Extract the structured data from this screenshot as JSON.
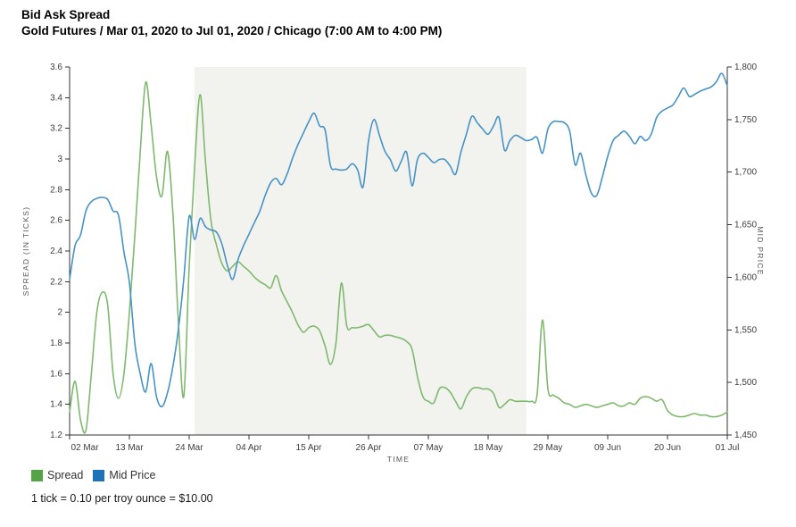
{
  "header": {
    "title": "Bid Ask Spread",
    "subtitle": "Gold Futures / Mar 01, 2020 to Jul 01, 2020 / Chicago (7:00 AM to 4:00 PM)"
  },
  "legend": [
    {
      "label": "Spread",
      "color": "#55a347"
    },
    {
      "label": "Mid Price",
      "color": "#1d72b8"
    }
  ],
  "footer": {
    "note": "1 tick = 0.10 per troy ounce = $10.00"
  },
  "chart_data": {
    "type": "line",
    "title": "Bid Ask Spread",
    "subtitle": "Gold Futures / Mar 01, 2020 to Jul 01, 2020 / Chicago (7:00 AM to 4:00 PM)",
    "xlabel": "TIME",
    "x_domain_days": [
      0,
      121
    ],
    "x_tick_days": [
      0,
      11,
      22,
      33,
      44,
      55,
      66,
      77,
      88,
      99,
      110,
      121
    ],
    "x_tick_labels": [
      "02 Mar",
      "13 Mar",
      "24 Mar",
      "04 Apr",
      "15 Apr",
      "26 Apr",
      "07 May",
      "18 May",
      "29 May",
      "09 Jun",
      "20 Jun",
      "01 Jul"
    ],
    "left_axis": {
      "label": "SPREAD (IN TICKS)",
      "min": 1.2,
      "max": 3.6,
      "tick_values": [
        3.6,
        3.4,
        3.2,
        3.0,
        2.8,
        2.6,
        2.4,
        2.2,
        2.0,
        1.8,
        1.6,
        1.4,
        1.2
      ],
      "tick_labels": [
        "3.6",
        "3.4",
        "3.2",
        "3",
        "2.8",
        "2.6",
        "2.4",
        "2.2",
        "2",
        "1.8",
        "1.6",
        "1.4",
        "1.2"
      ]
    },
    "right_axis": {
      "label": "MID PRICE",
      "min": 1450,
      "max": 1800,
      "tick_values": [
        1800,
        1750,
        1700,
        1650,
        1600,
        1550,
        1500,
        1450
      ],
      "tick_labels": [
        "1,800",
        "1,750",
        "1,700",
        "1,650",
        "1,600",
        "1,550",
        "1,500",
        "1,450"
      ]
    },
    "highlight_region": {
      "from_day": 23,
      "to_day": 84,
      "from_date": "25 Mar 2020",
      "to_date": "25 May 2020",
      "color": "#f2f2ef"
    },
    "grid": false,
    "legend_position": "bottom-left",
    "colors": {
      "spread_line": "#7fb96e",
      "mid_price_line": "#4793c6",
      "axis": "#333333"
    },
    "series": [
      {
        "name": "Spread",
        "axis": "left",
        "color": "#7fb96e",
        "points": [
          [
            0,
            1.35
          ],
          [
            1,
            1.55
          ],
          [
            2,
            1.3
          ],
          [
            3,
            1.23
          ],
          [
            4,
            1.6
          ],
          [
            5,
            2.0
          ],
          [
            6,
            2.13
          ],
          [
            7,
            2.05
          ],
          [
            8,
            1.6
          ],
          [
            9,
            1.44
          ],
          [
            10,
            1.6
          ],
          [
            11,
            2.0
          ],
          [
            12,
            2.5
          ],
          [
            13,
            3.05
          ],
          [
            14,
            3.5
          ],
          [
            15,
            3.22
          ],
          [
            16,
            2.88
          ],
          [
            17,
            2.76
          ],
          [
            18,
            3.05
          ],
          [
            19,
            2.65
          ],
          [
            20,
            1.95
          ],
          [
            21,
            1.45
          ],
          [
            22,
            2.3
          ],
          [
            23,
            2.95
          ],
          [
            24,
            3.42
          ],
          [
            25,
            2.98
          ],
          [
            26,
            2.6
          ],
          [
            27,
            2.44
          ],
          [
            28,
            2.32
          ],
          [
            29,
            2.27
          ],
          [
            30,
            2.3
          ],
          [
            31,
            2.33
          ],
          [
            32,
            2.3
          ],
          [
            33,
            2.27
          ],
          [
            34,
            2.23
          ],
          [
            35,
            2.2
          ],
          [
            36,
            2.18
          ],
          [
            37,
            2.16
          ],
          [
            38,
            2.24
          ],
          [
            39,
            2.14
          ],
          [
            40,
            2.07
          ],
          [
            41,
            2.0
          ],
          [
            42,
            1.92
          ],
          [
            43,
            1.87
          ],
          [
            44,
            1.9
          ],
          [
            45,
            1.91
          ],
          [
            46,
            1.88
          ],
          [
            47,
            1.78
          ],
          [
            48,
            1.66
          ],
          [
            49,
            1.8
          ],
          [
            50,
            2.19
          ],
          [
            51,
            1.91
          ],
          [
            52,
            1.9
          ],
          [
            53,
            1.9
          ],
          [
            54,
            1.91
          ],
          [
            55,
            1.92
          ],
          [
            56,
            1.88
          ],
          [
            57,
            1.84
          ],
          [
            58,
            1.85
          ],
          [
            59,
            1.85
          ],
          [
            60,
            1.84
          ],
          [
            61,
            1.83
          ],
          [
            62,
            1.81
          ],
          [
            63,
            1.76
          ],
          [
            64,
            1.58
          ],
          [
            65,
            1.45
          ],
          [
            66,
            1.42
          ],
          [
            67,
            1.41
          ],
          [
            68,
            1.5
          ],
          [
            69,
            1.51
          ],
          [
            70,
            1.48
          ],
          [
            71,
            1.42
          ],
          [
            72,
            1.37
          ],
          [
            73,
            1.45
          ],
          [
            74,
            1.5
          ],
          [
            75,
            1.51
          ],
          [
            76,
            1.5
          ],
          [
            77,
            1.5
          ],
          [
            78,
            1.47
          ],
          [
            79,
            1.38
          ],
          [
            80,
            1.4
          ],
          [
            81,
            1.43
          ],
          [
            82,
            1.42
          ],
          [
            83,
            1.42
          ],
          [
            84,
            1.42
          ],
          [
            85,
            1.42
          ],
          [
            86,
            1.46
          ],
          [
            87,
            1.95
          ],
          [
            88,
            1.5
          ],
          [
            89,
            1.46
          ],
          [
            90,
            1.44
          ],
          [
            91,
            1.41
          ],
          [
            92,
            1.4
          ],
          [
            93,
            1.38
          ],
          [
            94,
            1.39
          ],
          [
            95,
            1.4
          ],
          [
            96,
            1.39
          ],
          [
            97,
            1.38
          ],
          [
            98,
            1.39
          ],
          [
            99,
            1.4
          ],
          [
            100,
            1.41
          ],
          [
            101,
            1.39
          ],
          [
            102,
            1.39
          ],
          [
            103,
            1.41
          ],
          [
            104,
            1.4
          ],
          [
            105,
            1.44
          ],
          [
            106,
            1.45
          ],
          [
            107,
            1.44
          ],
          [
            108,
            1.42
          ],
          [
            109,
            1.43
          ],
          [
            110,
            1.36
          ],
          [
            111,
            1.33
          ],
          [
            112,
            1.32
          ],
          [
            113,
            1.32
          ],
          [
            114,
            1.33
          ],
          [
            115,
            1.34
          ],
          [
            116,
            1.33
          ],
          [
            117,
            1.33
          ],
          [
            118,
            1.32
          ],
          [
            119,
            1.32
          ],
          [
            120,
            1.33
          ],
          [
            121,
            1.35
          ]
        ]
      },
      {
        "name": "Mid Price",
        "axis": "right",
        "color": "#4793c6",
        "points": [
          [
            0,
            1598
          ],
          [
            1,
            1630
          ],
          [
            2,
            1640
          ],
          [
            3,
            1663
          ],
          [
            4,
            1672
          ],
          [
            5,
            1675
          ],
          [
            6,
            1676
          ],
          [
            7,
            1674
          ],
          [
            8,
            1663
          ],
          [
            9,
            1659
          ],
          [
            10,
            1624
          ],
          [
            11,
            1595
          ],
          [
            12,
            1537
          ],
          [
            13,
            1508
          ],
          [
            14,
            1491
          ],
          [
            15,
            1518
          ],
          [
            16,
            1486
          ],
          [
            17,
            1477
          ],
          [
            18,
            1490
          ],
          [
            19,
            1515
          ],
          [
            20,
            1550
          ],
          [
            21,
            1598
          ],
          [
            22,
            1658
          ],
          [
            23,
            1636
          ],
          [
            24,
            1656
          ],
          [
            25,
            1648
          ],
          [
            26,
            1645
          ],
          [
            27,
            1643
          ],
          [
            28,
            1632
          ],
          [
            29,
            1612
          ],
          [
            30,
            1598
          ],
          [
            31,
            1617
          ],
          [
            32,
            1630
          ],
          [
            33,
            1641
          ],
          [
            34,
            1652
          ],
          [
            35,
            1663
          ],
          [
            36,
            1678
          ],
          [
            37,
            1690
          ],
          [
            38,
            1694
          ],
          [
            39,
            1688
          ],
          [
            40,
            1698
          ],
          [
            41,
            1713
          ],
          [
            42,
            1726
          ],
          [
            43,
            1737
          ],
          [
            44,
            1748
          ],
          [
            45,
            1756
          ],
          [
            46,
            1744
          ],
          [
            47,
            1740
          ],
          [
            48,
            1706
          ],
          [
            49,
            1703
          ],
          [
            50,
            1702
          ],
          [
            51,
            1703
          ],
          [
            52,
            1708
          ],
          [
            53,
            1702
          ],
          [
            54,
            1686
          ],
          [
            55,
            1730
          ],
          [
            56,
            1750
          ],
          [
            57,
            1735
          ],
          [
            58,
            1720
          ],
          [
            59,
            1712
          ],
          [
            60,
            1701
          ],
          [
            61,
            1710
          ],
          [
            62,
            1719
          ],
          [
            63,
            1687
          ],
          [
            64,
            1712
          ],
          [
            65,
            1718
          ],
          [
            66,
            1714
          ],
          [
            67,
            1709
          ],
          [
            68,
            1712
          ],
          [
            69,
            1712
          ],
          [
            70,
            1706
          ],
          [
            71,
            1698
          ],
          [
            72,
            1719
          ],
          [
            73,
            1736
          ],
          [
            74,
            1753
          ],
          [
            75,
            1747
          ],
          [
            76,
            1741
          ],
          [
            77,
            1736
          ],
          [
            78,
            1744
          ],
          [
            79,
            1752
          ],
          [
            80,
            1721
          ],
          [
            81,
            1730
          ],
          [
            82,
            1735
          ],
          [
            83,
            1733
          ],
          [
            84,
            1730
          ],
          [
            85,
            1731
          ],
          [
            86,
            1733
          ],
          [
            87,
            1718
          ],
          [
            88,
            1741
          ],
          [
            89,
            1748
          ],
          [
            90,
            1748
          ],
          [
            91,
            1747
          ],
          [
            92,
            1739
          ],
          [
            93,
            1707
          ],
          [
            94,
            1718
          ],
          [
            95,
            1697
          ],
          [
            96,
            1680
          ],
          [
            97,
            1678
          ],
          [
            98,
            1695
          ],
          [
            99,
            1715
          ],
          [
            100,
            1730
          ],
          [
            101,
            1735
          ],
          [
            102,
            1739
          ],
          [
            103,
            1734
          ],
          [
            104,
            1727
          ],
          [
            105,
            1734
          ],
          [
            106,
            1730
          ],
          [
            107,
            1736
          ],
          [
            108,
            1752
          ],
          [
            109,
            1758
          ],
          [
            110,
            1761
          ],
          [
            111,
            1764
          ],
          [
            112,
            1772
          ],
          [
            113,
            1780
          ],
          [
            114,
            1772
          ],
          [
            115,
            1774
          ],
          [
            116,
            1777
          ],
          [
            117,
            1779
          ],
          [
            118,
            1781
          ],
          [
            119,
            1786
          ],
          [
            120,
            1794
          ],
          [
            121,
            1782
          ]
        ]
      }
    ]
  }
}
